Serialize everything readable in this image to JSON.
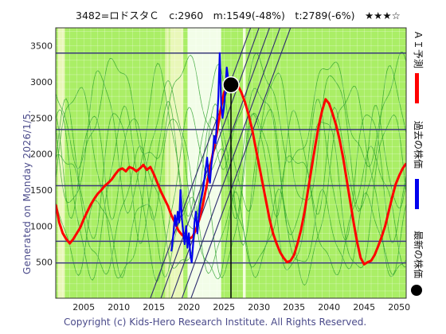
{
  "header": {
    "title": "3482=ロドスタＣ　c:2960　m:1549(-48%)　t:2789(-6%)　★★★☆"
  },
  "side_text": {
    "generated": "Generated on Monday 2026/1/5.",
    "copyright": "Copyright (c) Kids-Hero Research Institute. All Rights Reserved."
  },
  "legend": {
    "ai_forecast": "ＡＩ予測",
    "past_price": "過去の株価",
    "latest_price": "最新の株価"
  },
  "colors": {
    "forecast": "#ff0000",
    "past": "#0000ee",
    "latest": "#000000",
    "plot_bg": "#aaee66",
    "hline": "#3a3a7a"
  },
  "chart_data": {
    "type": "line",
    "xlim": [
      2001,
      2051
    ],
    "ylim": [
      0,
      3750
    ],
    "x_ticks": [
      2005,
      2010,
      2015,
      2020,
      2025,
      2030,
      2035,
      2040,
      2045,
      2050
    ],
    "y_ticks": [
      500,
      1000,
      1500,
      2000,
      2500,
      3000,
      3500
    ],
    "grid": true,
    "horizontal_levels": [
      3400,
      2340,
      1560,
      790,
      490
    ],
    "current": {
      "x": 2026.0,
      "y": 2960
    },
    "series": [
      {
        "name": "ＡＩ予測",
        "points": [
          [
            2001.0,
            1300
          ],
          [
            2001.5,
            1050
          ],
          [
            2002.0,
            900
          ],
          [
            2002.5,
            820
          ],
          [
            2003.0,
            760
          ],
          [
            2003.5,
            820
          ],
          [
            2004.0,
            900
          ],
          [
            2004.5,
            980
          ],
          [
            2005.0,
            1100
          ],
          [
            2005.5,
            1200
          ],
          [
            2006.0,
            1300
          ],
          [
            2006.5,
            1380
          ],
          [
            2007.0,
            1450
          ],
          [
            2007.5,
            1500
          ],
          [
            2008.0,
            1560
          ],
          [
            2008.5,
            1600
          ],
          [
            2009.0,
            1650
          ],
          [
            2009.5,
            1720
          ],
          [
            2010.0,
            1780
          ],
          [
            2010.5,
            1800
          ],
          [
            2011.0,
            1760
          ],
          [
            2011.5,
            1820
          ],
          [
            2012.0,
            1800
          ],
          [
            2012.5,
            1760
          ],
          [
            2013.0,
            1800
          ],
          [
            2013.5,
            1850
          ],
          [
            2014.0,
            1780
          ],
          [
            2014.5,
            1820
          ],
          [
            2015.0,
            1720
          ],
          [
            2015.5,
            1600
          ],
          [
            2016.0,
            1480
          ],
          [
            2016.5,
            1380
          ],
          [
            2017.0,
            1280
          ],
          [
            2017.5,
            1150
          ],
          [
            2018.0,
            1050
          ],
          [
            2018.5,
            940
          ],
          [
            2019.0,
            880
          ],
          [
            2019.5,
            840
          ],
          [
            2020.0,
            820
          ],
          [
            2020.5,
            850
          ],
          [
            2021.0,
            950
          ],
          [
            2021.5,
            1100
          ],
          [
            2022.0,
            1300
          ],
          [
            2022.5,
            1550
          ],
          [
            2023.0,
            1800
          ],
          [
            2023.5,
            2050
          ],
          [
            2024.0,
            2300
          ],
          [
            2024.5,
            2600
          ],
          [
            2025.0,
            2850
          ],
          [
            2025.5,
            2950
          ],
          [
            2026.0,
            2980
          ],
          [
            2026.5,
            3000
          ],
          [
            2027.0,
            2950
          ],
          [
            2027.5,
            2850
          ],
          [
            2028.0,
            2720
          ],
          [
            2028.5,
            2550
          ],
          [
            2029.0,
            2350
          ],
          [
            2029.5,
            2100
          ],
          [
            2030.0,
            1850
          ],
          [
            2030.5,
            1600
          ],
          [
            2031.0,
            1350
          ],
          [
            2031.5,
            1100
          ],
          [
            2032.0,
            900
          ],
          [
            2032.5,
            760
          ],
          [
            2033.0,
            640
          ],
          [
            2033.5,
            560
          ],
          [
            2034.0,
            500
          ],
          [
            2034.5,
            520
          ],
          [
            2035.0,
            600
          ],
          [
            2035.5,
            760
          ],
          [
            2036.0,
            950
          ],
          [
            2036.5,
            1200
          ],
          [
            2037.0,
            1500
          ],
          [
            2037.5,
            1800
          ],
          [
            2038.0,
            2100
          ],
          [
            2038.5,
            2380
          ],
          [
            2039.0,
            2600
          ],
          [
            2039.5,
            2760
          ],
          [
            2040.0,
            2700
          ],
          [
            2040.5,
            2560
          ],
          [
            2041.0,
            2400
          ],
          [
            2041.5,
            2200
          ],
          [
            2042.0,
            1950
          ],
          [
            2042.5,
            1650
          ],
          [
            2043.0,
            1350
          ],
          [
            2043.5,
            1050
          ],
          [
            2044.0,
            780
          ],
          [
            2044.5,
            560
          ],
          [
            2045.0,
            470
          ],
          [
            2045.5,
            500
          ],
          [
            2046.0,
            520
          ],
          [
            2046.5,
            600
          ],
          [
            2047.0,
            720
          ],
          [
            2047.5,
            850
          ],
          [
            2048.0,
            1000
          ],
          [
            2048.5,
            1200
          ],
          [
            2049.0,
            1400
          ],
          [
            2049.5,
            1580
          ],
          [
            2050.0,
            1700
          ],
          [
            2050.5,
            1800
          ],
          [
            2051.0,
            1870
          ]
        ]
      },
      {
        "name": "過去の株価",
        "points": [
          [
            2017.5,
            650
          ],
          [
            2017.8,
            900
          ],
          [
            2018.0,
            1150
          ],
          [
            2018.2,
            1000
          ],
          [
            2018.4,
            1200
          ],
          [
            2018.6,
            1050
          ],
          [
            2018.8,
            1500
          ],
          [
            2019.0,
            1100
          ],
          [
            2019.2,
            900
          ],
          [
            2019.4,
            750
          ],
          [
            2019.6,
            1000
          ],
          [
            2019.8,
            700
          ],
          [
            2020.0,
            900
          ],
          [
            2020.2,
            600
          ],
          [
            2020.4,
            500
          ],
          [
            2020.6,
            750
          ],
          [
            2020.8,
            1050
          ],
          [
            2021.0,
            1200
          ],
          [
            2021.2,
            900
          ],
          [
            2021.4,
            1100
          ],
          [
            2021.6,
            1300
          ],
          [
            2021.8,
            1400
          ],
          [
            2022.0,
            1500
          ],
          [
            2022.2,
            1650
          ],
          [
            2022.4,
            1800
          ],
          [
            2022.6,
            1950
          ],
          [
            2022.8,
            1700
          ],
          [
            2023.0,
            1600
          ],
          [
            2023.2,
            1850
          ],
          [
            2023.4,
            2000
          ],
          [
            2023.6,
            2250
          ],
          [
            2023.8,
            2150
          ],
          [
            2024.0,
            2450
          ],
          [
            2024.2,
            2800
          ],
          [
            2024.4,
            3400
          ],
          [
            2024.6,
            2700
          ],
          [
            2024.8,
            2500
          ],
          [
            2025.0,
            2650
          ],
          [
            2025.2,
            2900
          ],
          [
            2025.4,
            3200
          ],
          [
            2025.6,
            3050
          ],
          [
            2025.8,
            2950
          ],
          [
            2026.0,
            2960
          ]
        ]
      }
    ]
  }
}
